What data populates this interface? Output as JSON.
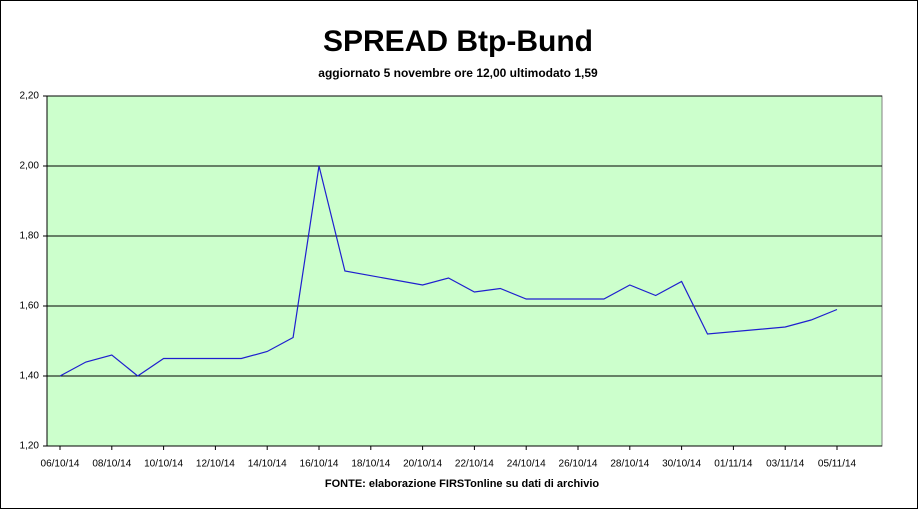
{
  "chart_data": {
    "type": "line",
    "title": "SPREAD Btp-Bund",
    "subtitle": "aggiornato 5 novembre ore 12,00  ultimodato  1,59",
    "source": "FONTE: elaborazione FIRSTonline su dati di archivio",
    "x": [
      "06/10/14",
      "07/10/14",
      "08/10/14",
      "09/10/14",
      "10/10/14",
      "13/10/14",
      "14/10/14",
      "15/10/14",
      "16/10/14",
      "17/10/14",
      "20/10/14",
      "21/10/14",
      "22/10/14",
      "23/10/14",
      "24/10/14",
      "27/10/14",
      "28/10/14",
      "29/10/14",
      "30/10/14",
      "31/10/14",
      "03/11/14",
      "04/11/14",
      "05/11/14"
    ],
    "series": [
      {
        "color": "#1f1fcf",
        "values": [
          1.4,
          1.44,
          1.46,
          1.4,
          1.45,
          1.45,
          1.47,
          1.51,
          2.0,
          1.7,
          1.66,
          1.68,
          1.64,
          1.65,
          1.62,
          1.62,
          1.66,
          1.63,
          1.67,
          1.52,
          1.54,
          1.56,
          1.59
        ]
      }
    ],
    "xlim": [
      "06/10/14",
      "05/11/14"
    ],
    "xticks": [
      "06/10/14",
      "08/10/14",
      "10/10/14",
      "12/10/14",
      "14/10/14",
      "16/10/14",
      "18/10/14",
      "20/10/14",
      "22/10/14",
      "24/10/14",
      "26/10/14",
      "28/10/14",
      "30/10/14",
      "01/11/14",
      "03/11/14",
      "05/11/14"
    ],
    "ylim": [
      1.2,
      2.2
    ],
    "yticks": [
      {
        "value": 1.2,
        "label": "1,20"
      },
      {
        "value": 1.4,
        "label": "1,40"
      },
      {
        "value": 1.6,
        "label": "1,60"
      },
      {
        "value": 1.8,
        "label": "1,80"
      },
      {
        "value": 2.0,
        "label": "2,00"
      },
      {
        "value": 2.2,
        "label": "2,20"
      }
    ],
    "grid": true,
    "plot_background": "#ccffcc"
  }
}
